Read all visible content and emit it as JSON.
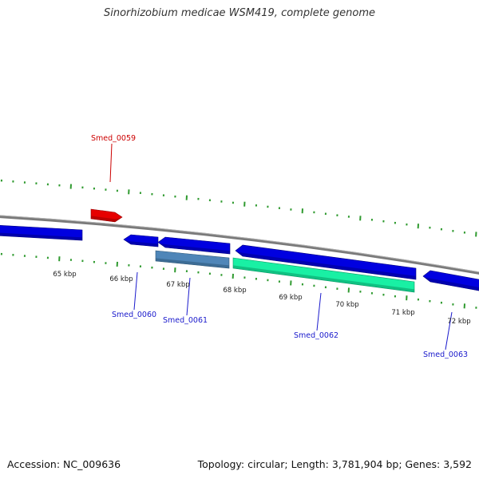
{
  "title": "Sinorhizobium medicae WSM419, complete genome",
  "footer": {
    "accession": "Accession: NC_009636",
    "summary": "Topology: circular; Length: 3,781,904 bp; Genes: 3,592"
  },
  "colors": {
    "backbone": "#7a7a7a",
    "tick": "#2f9a2f",
    "gene_forward_highlight": "#e60000",
    "gene_reverse": "#0000e0",
    "gene_steelblue": "#4f86b8",
    "gene_aquamarine": "#19f0a4",
    "label_red": "#cc0000",
    "label_blue": "#1a1acc",
    "text_dark": "#222222"
  },
  "chart_data": {
    "type": "genome-map",
    "units": "kbp",
    "scale_labels": [
      "65 kbp",
      "66 kbp",
      "67 kbp",
      "68 kbp",
      "69 kbp",
      "70 kbp",
      "71 kbp",
      "72 kbp"
    ],
    "genes": [
      {
        "id": "Smed_0059",
        "label": "Smed_0059",
        "strand": "+",
        "color": "red"
      },
      {
        "id": "Smed_0060",
        "label": "Smed_0060",
        "strand": "-",
        "color": "blue"
      },
      {
        "id": "Smed_0061",
        "label": "Smed_0061",
        "strand": "-",
        "color": "steelblue"
      },
      {
        "id": "Smed_0062",
        "label": "Smed_0062",
        "strand": "-",
        "color": "aquamarine"
      },
      {
        "id": "Smed_0063",
        "label": "Smed_0063",
        "strand": "-",
        "color": "blue"
      }
    ]
  }
}
